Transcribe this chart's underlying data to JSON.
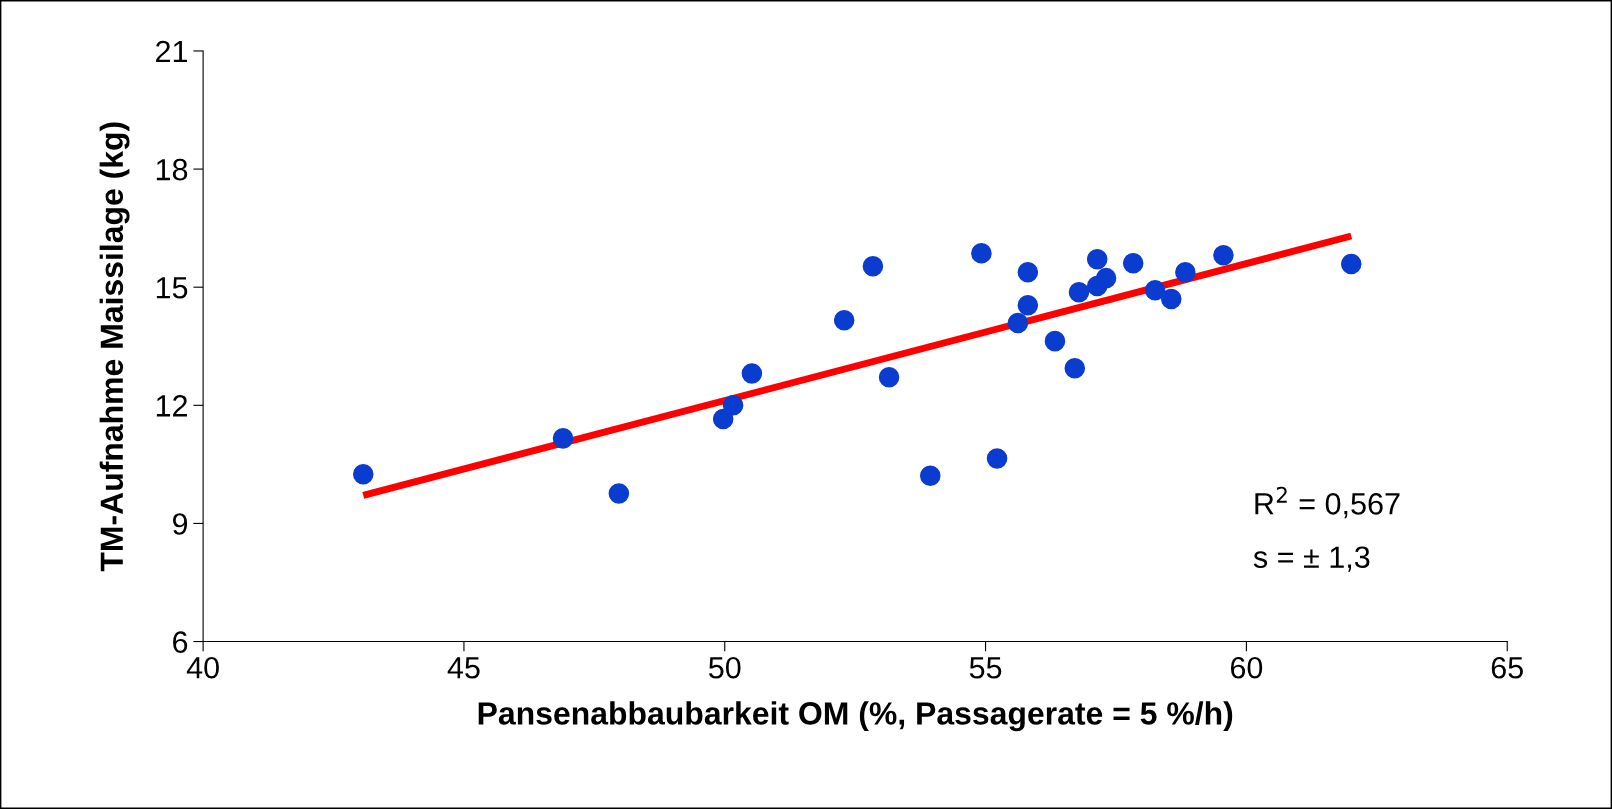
{
  "chart_data": {
    "type": "scatter",
    "xlabel": "Pansenabbaubarkeit OM (%, Passagerate = 5 %/h)",
    "ylabel": "TM-Aufnahme Maissilage (kg)",
    "xlim": [
      40,
      65
    ],
    "xticks": [
      40,
      45,
      50,
      55,
      60,
      65
    ],
    "ylim": [
      6,
      21
    ],
    "yticks": [
      6,
      9,
      12,
      15,
      18,
      21
    ],
    "grid": false,
    "legend": false,
    "marker": "circle",
    "series": [
      {
        "color": "#0a3cd0",
        "x": [
          43.07,
          46.9,
          47.97,
          49.97,
          50.16,
          50.52,
          52.29,
          52.84,
          53.15,
          53.94,
          54.92,
          55.22,
          55.62,
          55.81,
          55.81,
          56.33,
          56.71,
          56.79,
          57.14,
          57.14,
          57.31,
          57.83,
          58.25,
          58.56,
          58.83,
          59.56,
          62.01
        ],
        "values": [
          10.25,
          11.16,
          9.76,
          11.65,
          12.0,
          12.81,
          14.16,
          15.53,
          12.71,
          10.21,
          15.86,
          10.65,
          14.09,
          15.38,
          14.54,
          13.63,
          12.94,
          14.87,
          15.71,
          15.03,
          15.23,
          15.61,
          14.92,
          14.7,
          15.38,
          15.81,
          15.59
        ]
      },
      {
        "type": "line",
        "marker": "none",
        "color": "#ff0000",
        "x": [
          43.07,
          62.01
        ],
        "values": [
          9.71,
          16.3
        ]
      }
    ],
    "annotations": [
      "R$^{2}$ = 0,567",
      "s = ± 1,3"
    ]
  }
}
